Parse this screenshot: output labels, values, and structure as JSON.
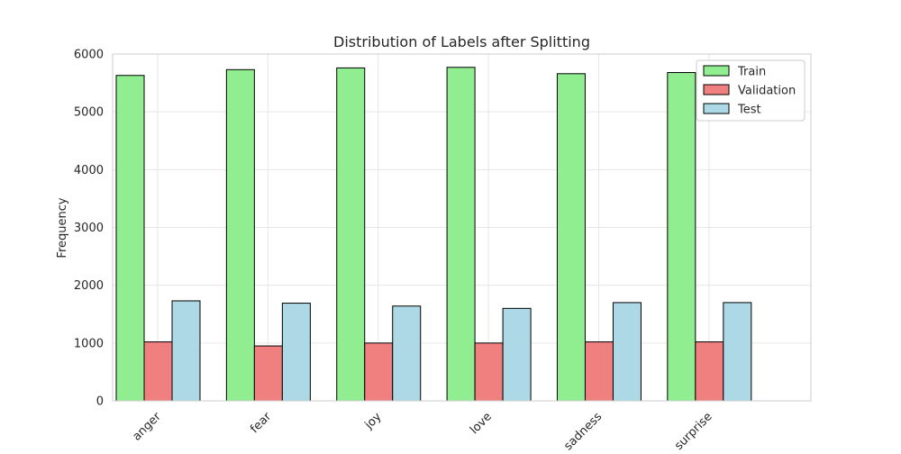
{
  "chart_data": {
    "type": "bar",
    "title": "Distribution of Labels after Splitting",
    "xlabel": "",
    "ylabel": "Frequency",
    "categories": [
      "anger",
      "fear",
      "joy",
      "love",
      "sadness",
      "surprise"
    ],
    "series": [
      {
        "name": "Train",
        "color": "#90EE90",
        "values": [
          5630,
          5730,
          5760,
          5770,
          5660,
          5680
        ]
      },
      {
        "name": "Validation",
        "color": "#F08080",
        "values": [
          1020,
          950,
          1000,
          1000,
          1020,
          1020
        ]
      },
      {
        "name": "Test",
        "color": "#ADD8E6",
        "values": [
          1730,
          1690,
          1640,
          1600,
          1700,
          1700
        ]
      }
    ],
    "ylim": [
      0,
      6000
    ],
    "yticks": [
      0,
      1000,
      2000,
      3000,
      4000,
      5000,
      6000
    ],
    "grid": true,
    "legend_position": "top-right",
    "tick_label_rotation": 45
  }
}
